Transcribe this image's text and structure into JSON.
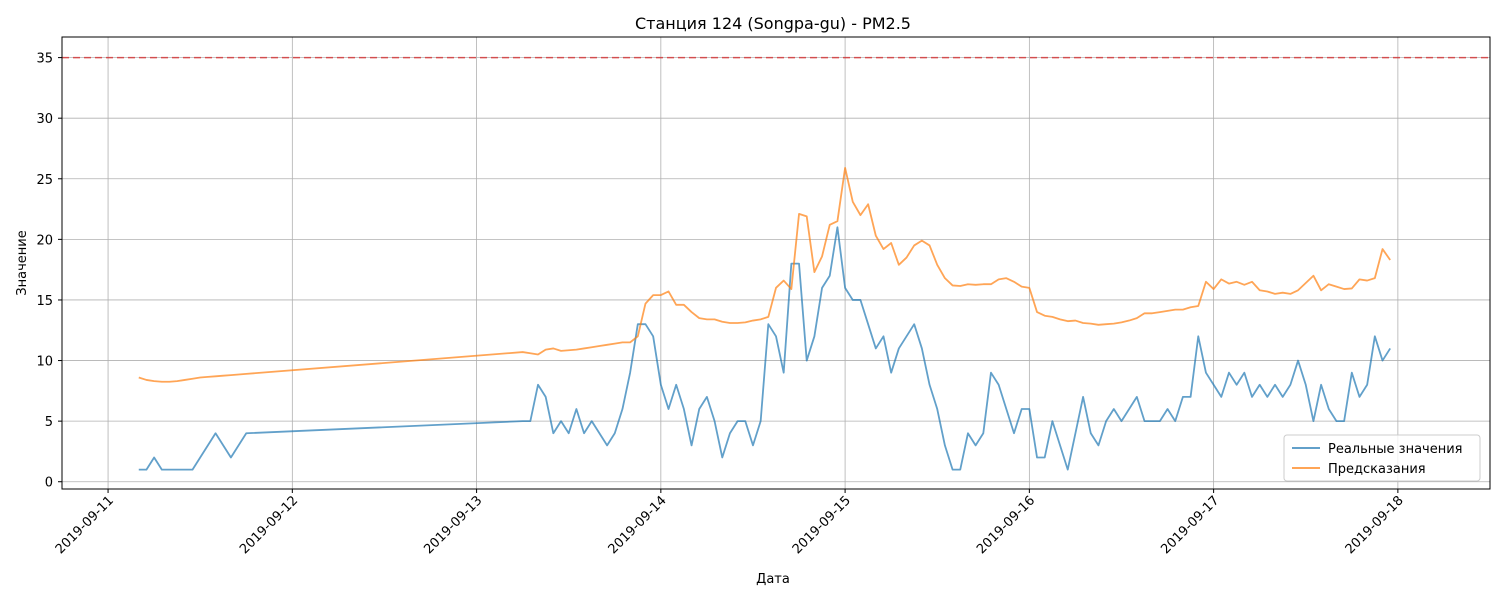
{
  "chart_data": {
    "type": "line",
    "title": "Станция 124 (Songpa-gu) - PM2.5",
    "xlabel": "Дата",
    "ylabel": "Значение",
    "x_axis": {
      "ticks": [
        "2019-09-11",
        "2019-09-12",
        "2019-09-13",
        "2019-09-14",
        "2019-09-15",
        "2019-09-16",
        "2019-09-17",
        "2019-09-18"
      ],
      "range": [
        "2019-09-10T18:00",
        "2019-09-18T12:00"
      ]
    },
    "y_axis": {
      "ticks": [
        0,
        5,
        10,
        15,
        20,
        25,
        30,
        35
      ],
      "range": [
        -0.6,
        36.7
      ]
    },
    "grid": true,
    "legend_position": "lower-right",
    "threshold": {
      "value": 35,
      "color": "#d62728",
      "style": "dashed"
    },
    "series": [
      {
        "name": "Реальные значения",
        "color": "#1f77b4",
        "points": [
          [
            "2019-09-11T04:00",
            1
          ],
          [
            "2019-09-11T05:00",
            1
          ],
          [
            "2019-09-11T06:00",
            2
          ],
          [
            "2019-09-11T07:00",
            1
          ],
          [
            "2019-09-11T08:00",
            1
          ],
          [
            "2019-09-11T09:00",
            1
          ],
          [
            "2019-09-11T10:00",
            1
          ],
          [
            "2019-09-11T11:00",
            1
          ],
          [
            "2019-09-11T12:00",
            2
          ],
          [
            "2019-09-11T13:00",
            3
          ],
          [
            "2019-09-11T14:00",
            4
          ],
          [
            "2019-09-11T15:00",
            3
          ],
          [
            "2019-09-11T16:00",
            2
          ],
          [
            "2019-09-11T17:00",
            3
          ],
          [
            "2019-09-11T18:00",
            4
          ],
          [
            "2019-09-13T06:00",
            5
          ],
          [
            "2019-09-13T07:00",
            5
          ],
          [
            "2019-09-13T08:00",
            8
          ],
          [
            "2019-09-13T09:00",
            7
          ],
          [
            "2019-09-13T10:00",
            4
          ],
          [
            "2019-09-13T11:00",
            5
          ],
          [
            "2019-09-13T12:00",
            4
          ],
          [
            "2019-09-13T13:00",
            6
          ],
          [
            "2019-09-13T14:00",
            4
          ],
          [
            "2019-09-13T15:00",
            5
          ],
          [
            "2019-09-13T16:00",
            4
          ],
          [
            "2019-09-13T17:00",
            3
          ],
          [
            "2019-09-13T18:00",
            4
          ],
          [
            "2019-09-13T19:00",
            6
          ],
          [
            "2019-09-13T20:00",
            9
          ],
          [
            "2019-09-13T21:00",
            13
          ],
          [
            "2019-09-13T22:00",
            13
          ],
          [
            "2019-09-13T23:00",
            12
          ],
          [
            "2019-09-14T00:00",
            8
          ],
          [
            "2019-09-14T01:00",
            6
          ],
          [
            "2019-09-14T02:00",
            8
          ],
          [
            "2019-09-14T03:00",
            6
          ],
          [
            "2019-09-14T04:00",
            3
          ],
          [
            "2019-09-14T05:00",
            6
          ],
          [
            "2019-09-14T06:00",
            7
          ],
          [
            "2019-09-14T07:00",
            5
          ],
          [
            "2019-09-14T08:00",
            2
          ],
          [
            "2019-09-14T09:00",
            4
          ],
          [
            "2019-09-14T10:00",
            5
          ],
          [
            "2019-09-14T11:00",
            5
          ],
          [
            "2019-09-14T12:00",
            3
          ],
          [
            "2019-09-14T13:00",
            5
          ],
          [
            "2019-09-14T14:00",
            13
          ],
          [
            "2019-09-14T15:00",
            12
          ],
          [
            "2019-09-14T16:00",
            9
          ],
          [
            "2019-09-14T17:00",
            18
          ],
          [
            "2019-09-14T18:00",
            18
          ],
          [
            "2019-09-14T19:00",
            10
          ],
          [
            "2019-09-14T20:00",
            12
          ],
          [
            "2019-09-14T21:00",
            16
          ],
          [
            "2019-09-14T22:00",
            17
          ],
          [
            "2019-09-14T23:00",
            21
          ],
          [
            "2019-09-15T00:00",
            16
          ],
          [
            "2019-09-15T01:00",
            15
          ],
          [
            "2019-09-15T02:00",
            15
          ],
          [
            "2019-09-15T03:00",
            13
          ],
          [
            "2019-09-15T04:00",
            11
          ],
          [
            "2019-09-15T05:00",
            12
          ],
          [
            "2019-09-15T06:00",
            9
          ],
          [
            "2019-09-15T07:00",
            11
          ],
          [
            "2019-09-15T08:00",
            12
          ],
          [
            "2019-09-15T09:00",
            13
          ],
          [
            "2019-09-15T10:00",
            11
          ],
          [
            "2019-09-15T11:00",
            8
          ],
          [
            "2019-09-15T12:00",
            6
          ],
          [
            "2019-09-15T13:00",
            3
          ],
          [
            "2019-09-15T14:00",
            1
          ],
          [
            "2019-09-15T15:00",
            1
          ],
          [
            "2019-09-15T16:00",
            4
          ],
          [
            "2019-09-15T17:00",
            3
          ],
          [
            "2019-09-15T18:00",
            4
          ],
          [
            "2019-09-15T19:00",
            9
          ],
          [
            "2019-09-15T20:00",
            8
          ],
          [
            "2019-09-15T21:00",
            6
          ],
          [
            "2019-09-15T22:00",
            4
          ],
          [
            "2019-09-15T23:00",
            6
          ],
          [
            "2019-09-16T00:00",
            6
          ],
          [
            "2019-09-16T01:00",
            2
          ],
          [
            "2019-09-16T02:00",
            2
          ],
          [
            "2019-09-16T03:00",
            5
          ],
          [
            "2019-09-16T04:00",
            3
          ],
          [
            "2019-09-16T05:00",
            1
          ],
          [
            "2019-09-16T06:00",
            4
          ],
          [
            "2019-09-16T07:00",
            7
          ],
          [
            "2019-09-16T08:00",
            4
          ],
          [
            "2019-09-16T09:00",
            3
          ],
          [
            "2019-09-16T10:00",
            5
          ],
          [
            "2019-09-16T11:00",
            6
          ],
          [
            "2019-09-16T12:00",
            5
          ],
          [
            "2019-09-16T13:00",
            6
          ],
          [
            "2019-09-16T14:00",
            7
          ],
          [
            "2019-09-16T15:00",
            5
          ],
          [
            "2019-09-16T16:00",
            5
          ],
          [
            "2019-09-16T17:00",
            5
          ],
          [
            "2019-09-16T18:00",
            6
          ],
          [
            "2019-09-16T19:00",
            5
          ],
          [
            "2019-09-16T20:00",
            7
          ],
          [
            "2019-09-16T21:00",
            7
          ],
          [
            "2019-09-16T22:00",
            12
          ],
          [
            "2019-09-16T23:00",
            9
          ],
          [
            "2019-09-17T00:00",
            8
          ],
          [
            "2019-09-17T01:00",
            7
          ],
          [
            "2019-09-17T02:00",
            9
          ],
          [
            "2019-09-17T03:00",
            8
          ],
          [
            "2019-09-17T04:00",
            9
          ],
          [
            "2019-09-17T05:00",
            7
          ],
          [
            "2019-09-17T06:00",
            8
          ],
          [
            "2019-09-17T07:00",
            7
          ],
          [
            "2019-09-17T08:00",
            8
          ],
          [
            "2019-09-17T09:00",
            7
          ],
          [
            "2019-09-17T10:00",
            8
          ],
          [
            "2019-09-17T11:00",
            10
          ],
          [
            "2019-09-17T12:00",
            8
          ],
          [
            "2019-09-17T13:00",
            5
          ],
          [
            "2019-09-17T14:00",
            8
          ],
          [
            "2019-09-17T15:00",
            6
          ],
          [
            "2019-09-17T16:00",
            5
          ],
          [
            "2019-09-17T17:00",
            5
          ],
          [
            "2019-09-17T18:00",
            9
          ],
          [
            "2019-09-17T19:00",
            7
          ],
          [
            "2019-09-17T20:00",
            8
          ],
          [
            "2019-09-17T21:00",
            12
          ],
          [
            "2019-09-17T22:00",
            10
          ],
          [
            "2019-09-17T23:00",
            11
          ]
        ]
      },
      {
        "name": "Предсказания",
        "color": "#ff7f0e",
        "points": [
          [
            "2019-09-11T04:00",
            8.6
          ],
          [
            "2019-09-11T05:00",
            8.4
          ],
          [
            "2019-09-11T06:00",
            8.3
          ],
          [
            "2019-09-11T07:00",
            8.25
          ],
          [
            "2019-09-11T08:00",
            8.25
          ],
          [
            "2019-09-11T09:00",
            8.3
          ],
          [
            "2019-09-11T10:00",
            8.4
          ],
          [
            "2019-09-11T11:00",
            8.5
          ],
          [
            "2019-09-11T12:00",
            8.6
          ],
          [
            "2019-09-11T13:00",
            8.65
          ],
          [
            "2019-09-11T14:00",
            8.7
          ],
          [
            "2019-09-11T15:00",
            8.75
          ],
          [
            "2019-09-11T16:00",
            8.8
          ],
          [
            "2019-09-11T17:00",
            8.85
          ],
          [
            "2019-09-11T18:00",
            8.9
          ],
          [
            "2019-09-13T06:00",
            10.7
          ],
          [
            "2019-09-13T07:00",
            10.6
          ],
          [
            "2019-09-13T08:00",
            10.5
          ],
          [
            "2019-09-13T09:00",
            10.9
          ],
          [
            "2019-09-13T10:00",
            11.0
          ],
          [
            "2019-09-13T11:00",
            10.8
          ],
          [
            "2019-09-13T12:00",
            10.85
          ],
          [
            "2019-09-13T13:00",
            10.9
          ],
          [
            "2019-09-13T14:00",
            11.0
          ],
          [
            "2019-09-13T15:00",
            11.1
          ],
          [
            "2019-09-13T16:00",
            11.2
          ],
          [
            "2019-09-13T17:00",
            11.3
          ],
          [
            "2019-09-13T18:00",
            11.4
          ],
          [
            "2019-09-13T19:00",
            11.5
          ],
          [
            "2019-09-13T20:00",
            11.5
          ],
          [
            "2019-09-13T21:00",
            12.0
          ],
          [
            "2019-09-13T22:00",
            14.7
          ],
          [
            "2019-09-13T23:00",
            15.4
          ],
          [
            "2019-09-14T00:00",
            15.4
          ],
          [
            "2019-09-14T01:00",
            15.7
          ],
          [
            "2019-09-14T02:00",
            14.6
          ],
          [
            "2019-09-14T03:00",
            14.6
          ],
          [
            "2019-09-14T04:00",
            14.0
          ],
          [
            "2019-09-14T05:00",
            13.5
          ],
          [
            "2019-09-14T06:00",
            13.4
          ],
          [
            "2019-09-14T07:00",
            13.4
          ],
          [
            "2019-09-14T08:00",
            13.2
          ],
          [
            "2019-09-14T09:00",
            13.1
          ],
          [
            "2019-09-14T10:00",
            13.1
          ],
          [
            "2019-09-14T11:00",
            13.15
          ],
          [
            "2019-09-14T12:00",
            13.3
          ],
          [
            "2019-09-14T13:00",
            13.4
          ],
          [
            "2019-09-14T14:00",
            13.6
          ],
          [
            "2019-09-14T15:00",
            16.0
          ],
          [
            "2019-09-14T16:00",
            16.6
          ],
          [
            "2019-09-14T17:00",
            15.9
          ],
          [
            "2019-09-14T18:00",
            22.1
          ],
          [
            "2019-09-14T19:00",
            21.9
          ],
          [
            "2019-09-14T20:00",
            17.3
          ],
          [
            "2019-09-14T21:00",
            18.6
          ],
          [
            "2019-09-14T22:00",
            21.2
          ],
          [
            "2019-09-14T23:00",
            21.5
          ],
          [
            "2019-09-15T00:00",
            25.9
          ],
          [
            "2019-09-15T01:00",
            23.1
          ],
          [
            "2019-09-15T02:00",
            22.0
          ],
          [
            "2019-09-15T03:00",
            22.9
          ],
          [
            "2019-09-15T04:00",
            20.3
          ],
          [
            "2019-09-15T05:00",
            19.2
          ],
          [
            "2019-09-15T06:00",
            19.7
          ],
          [
            "2019-09-15T07:00",
            17.9
          ],
          [
            "2019-09-15T08:00",
            18.5
          ],
          [
            "2019-09-15T09:00",
            19.5
          ],
          [
            "2019-09-15T10:00",
            19.9
          ],
          [
            "2019-09-15T11:00",
            19.5
          ],
          [
            "2019-09-15T12:00",
            17.9
          ],
          [
            "2019-09-15T13:00",
            16.8
          ],
          [
            "2019-09-15T14:00",
            16.2
          ],
          [
            "2019-09-15T15:00",
            16.15
          ],
          [
            "2019-09-15T16:00",
            16.3
          ],
          [
            "2019-09-15T17:00",
            16.25
          ],
          [
            "2019-09-15T18:00",
            16.3
          ],
          [
            "2019-09-15T19:00",
            16.3
          ],
          [
            "2019-09-15T20:00",
            16.7
          ],
          [
            "2019-09-15T21:00",
            16.8
          ],
          [
            "2019-09-15T22:00",
            16.5
          ],
          [
            "2019-09-15T23:00",
            16.1
          ],
          [
            "2019-09-16T00:00",
            16.0
          ],
          [
            "2019-09-16T01:00",
            14.0
          ],
          [
            "2019-09-16T02:00",
            13.7
          ],
          [
            "2019-09-16T03:00",
            13.6
          ],
          [
            "2019-09-16T04:00",
            13.4
          ],
          [
            "2019-09-16T05:00",
            13.25
          ],
          [
            "2019-09-16T06:00",
            13.3
          ],
          [
            "2019-09-16T07:00",
            13.1
          ],
          [
            "2019-09-16T08:00",
            13.05
          ],
          [
            "2019-09-16T09:00",
            12.95
          ],
          [
            "2019-09-16T10:00",
            13.0
          ],
          [
            "2019-09-16T11:00",
            13.05
          ],
          [
            "2019-09-16T12:00",
            13.15
          ],
          [
            "2019-09-16T13:00",
            13.3
          ],
          [
            "2019-09-16T14:00",
            13.5
          ],
          [
            "2019-09-16T15:00",
            13.9
          ],
          [
            "2019-09-16T16:00",
            13.9
          ],
          [
            "2019-09-16T17:00",
            14.0
          ],
          [
            "2019-09-16T18:00",
            14.1
          ],
          [
            "2019-09-16T19:00",
            14.2
          ],
          [
            "2019-09-16T20:00",
            14.2
          ],
          [
            "2019-09-16T21:00",
            14.4
          ],
          [
            "2019-09-16T22:00",
            14.5
          ],
          [
            "2019-09-16T23:00",
            16.5
          ],
          [
            "2019-09-17T00:00",
            15.9
          ],
          [
            "2019-09-17T01:00",
            16.7
          ],
          [
            "2019-09-17T02:00",
            16.35
          ],
          [
            "2019-09-17T03:00",
            16.5
          ],
          [
            "2019-09-17T04:00",
            16.25
          ],
          [
            "2019-09-17T05:00",
            16.5
          ],
          [
            "2019-09-17T06:00",
            15.8
          ],
          [
            "2019-09-17T07:00",
            15.7
          ],
          [
            "2019-09-17T08:00",
            15.5
          ],
          [
            "2019-09-17T09:00",
            15.6
          ],
          [
            "2019-09-17T10:00",
            15.5
          ],
          [
            "2019-09-17T11:00",
            15.8
          ],
          [
            "2019-09-17T12:00",
            16.4
          ],
          [
            "2019-09-17T13:00",
            17.0
          ],
          [
            "2019-09-17T14:00",
            15.8
          ],
          [
            "2019-09-17T15:00",
            16.3
          ],
          [
            "2019-09-17T16:00",
            16.1
          ],
          [
            "2019-09-17T17:00",
            15.9
          ],
          [
            "2019-09-17T18:00",
            15.95
          ],
          [
            "2019-09-17T19:00",
            16.7
          ],
          [
            "2019-09-17T20:00",
            16.6
          ],
          [
            "2019-09-17T21:00",
            16.8
          ],
          [
            "2019-09-17T22:00",
            19.2
          ],
          [
            "2019-09-17T23:00",
            18.3
          ]
        ]
      }
    ]
  }
}
